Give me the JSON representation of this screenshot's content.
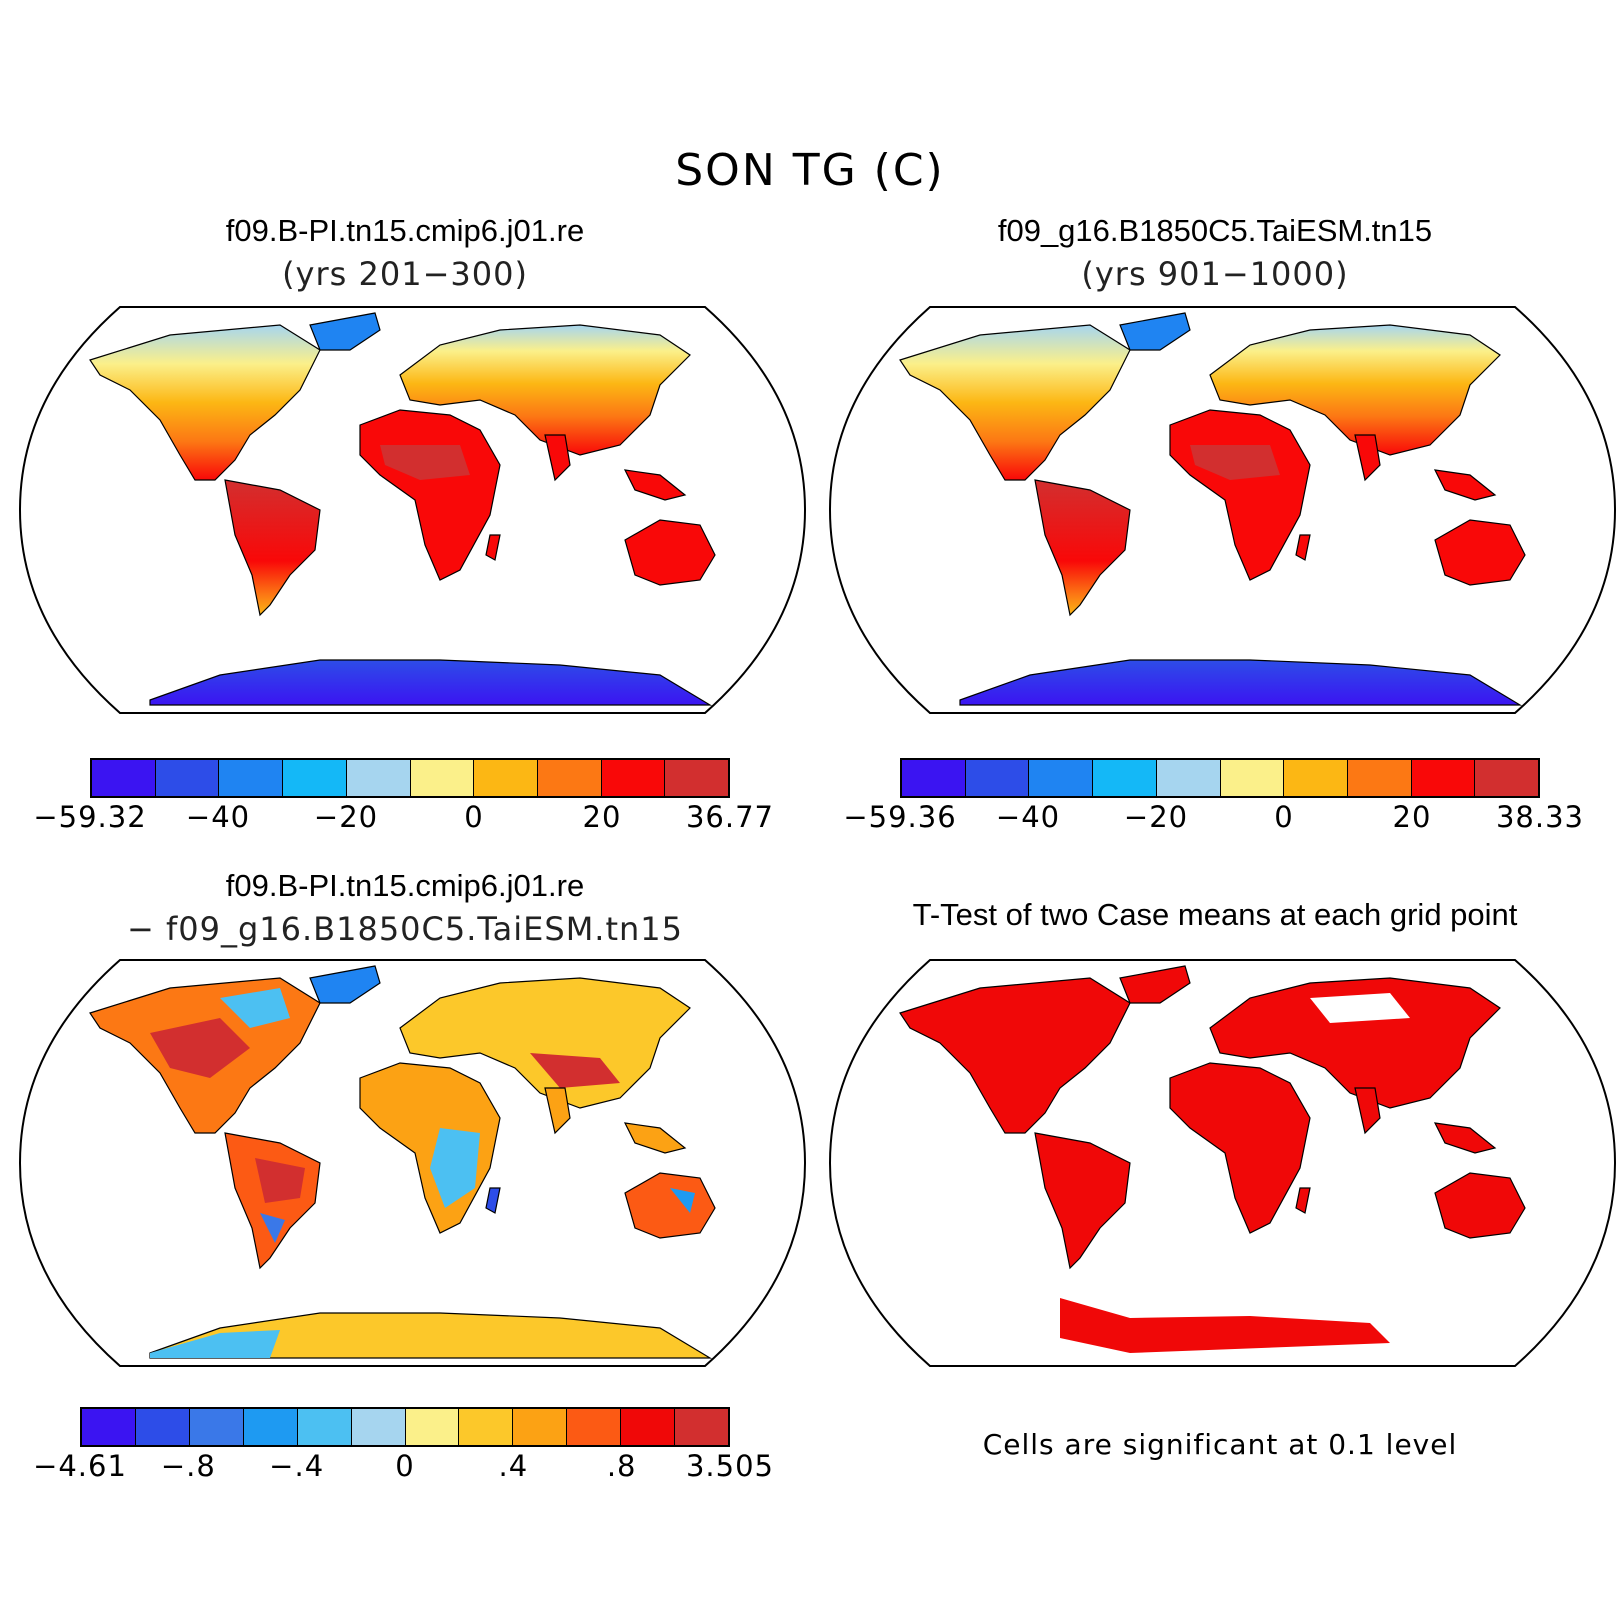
{
  "figure_title": "SON TG (C)",
  "panels": [
    {
      "title": "f09.B-PI.tn15.cmip6.j01.re",
      "subtitle": "(yrs 201−300)",
      "colorbar": {
        "colors": [
          "#3b14f2",
          "#2d4de8",
          "#1f84f2",
          "#14b8f7",
          "#a6d5ef",
          "#fbf08a",
          "#fcb714",
          "#fc7814",
          "#f90808",
          "#d22f2f"
        ],
        "ticks": [
          "−59.32",
          "−40",
          "−20",
          "0",
          "20",
          "36.77"
        ]
      }
    },
    {
      "title": "f09_g16.B1850C5.TaiESM.tn15",
      "subtitle": "(yrs 901−1000)",
      "colorbar": {
        "colors": [
          "#3b14f2",
          "#2d4de8",
          "#1f84f2",
          "#14b8f7",
          "#a6d5ef",
          "#fbf08a",
          "#fcb714",
          "#fc7814",
          "#f90808",
          "#d22f2f"
        ],
        "ticks": [
          "−59.36",
          "−40",
          "−20",
          "0",
          "20",
          "38.33"
        ]
      }
    },
    {
      "title": "f09.B-PI.tn15.cmip6.j01.re",
      "subtitle": "− f09_g16.B1850C5.TaiESM.tn15",
      "colorbar": {
        "colors": [
          "#3b14f2",
          "#2d4de8",
          "#3a78e8",
          "#1e9af2",
          "#4cc0f2",
          "#a6d5ef",
          "#fbf08a",
          "#fcc82a",
          "#fca214",
          "#fc5a14",
          "#f00808",
          "#d22f2f"
        ],
        "ticks": [
          "−4.61",
          "−.8",
          "−.4",
          "0",
          ".4",
          ".8",
          "3.505"
        ]
      }
    },
    {
      "title": "T-Test of two Case means at each grid point",
      "note": "Cells are significant at 0.1 level"
    }
  ]
}
